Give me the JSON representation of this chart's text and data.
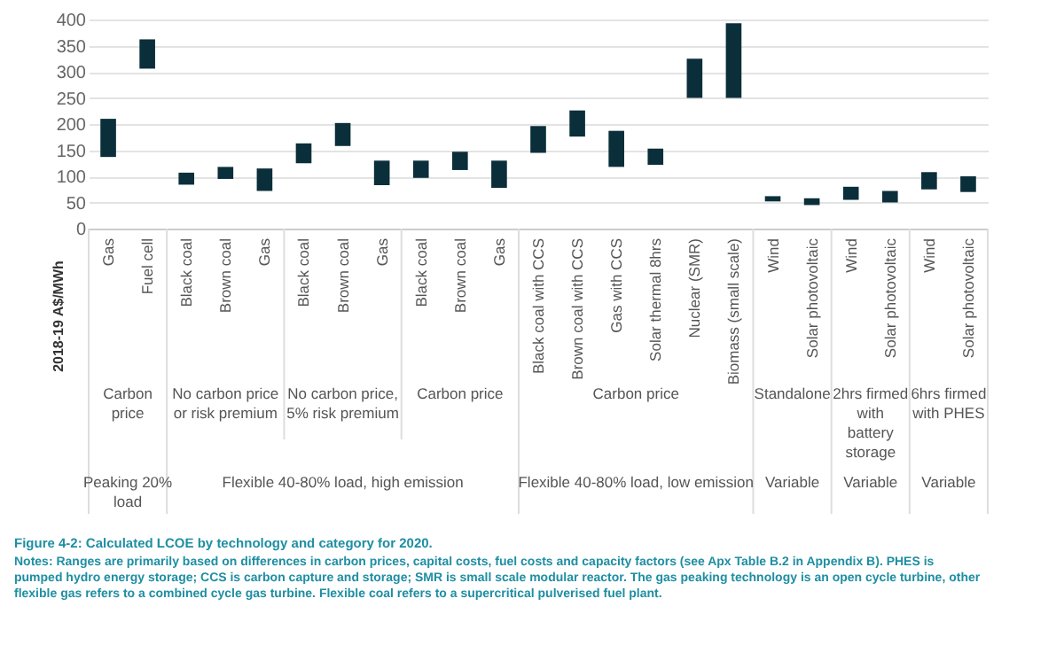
{
  "chart_data": {
    "type": "bar",
    "title": "Figure 4-2: Calculated LCOE by technology and category for 2020.",
    "ylabel": "2018-19 A$/MWh",
    "categories": [
      "Gas",
      "Fuel cell",
      "Black coal",
      "Brown coal",
      "Gas",
      "Black coal",
      "Brown coal",
      "Gas",
      "Black coal",
      "Brown coal",
      "Gas",
      "Black coal with CCS",
      "Brown coal with CCS",
      "Gas with CCS",
      "Solar thermal 8hrs",
      "Nuclear (SMR)",
      "Biomass (small scale)",
      "Wind",
      "Solar photovoltaic",
      "Wind",
      "Solar photovoltaic",
      "Wind",
      "Solar photovoltaic"
    ],
    "base": [
      137,
      306,
      84,
      95,
      72,
      125,
      158,
      83,
      97,
      112,
      78,
      145,
      176,
      118,
      122,
      250,
      250,
      52,
      45,
      55,
      50,
      75,
      70
    ],
    "values": [
      73,
      56,
      23,
      23,
      43,
      38,
      44,
      47,
      33,
      35,
      52,
      51,
      50,
      69,
      31,
      75,
      143,
      10,
      13,
      25,
      22,
      33,
      30
    ],
    "color": "#0b2f3a",
    "ylim": [
      0,
      400
    ],
    "yticks": [
      0,
      50,
      100,
      150,
      200,
      250,
      300,
      350,
      400
    ],
    "grid": "y",
    "annotations": [
      "Notes: Ranges are primarily based on differences in carbon prices, capital costs, fuel costs and capacity factors (see Apx Table B.2 in Appendix B). PHES is pumped hydro energy storage; CCS is carbon capture and storage; SMR is small scale modular reactor. The gas peaking technology is an open cycle turbine, other flexible gas refers to a combined cycle gas turbine. Flexible coal refers to a supercritical pulverised fuel plant.",
      "Carbon price",
      "No carbon price or risk premium",
      "No carbon price, 5% risk premium",
      "Carbon price",
      "Carbon price",
      "Standalone",
      "2hrs firmed with battery storage",
      "6hrs firmed with PHES",
      "Peaking 20% load",
      "Flexible 40-80% load, high emission",
      "Flexible 40-80% load, low emission",
      "Variable",
      "Variable",
      "Variable"
    ]
  }
}
